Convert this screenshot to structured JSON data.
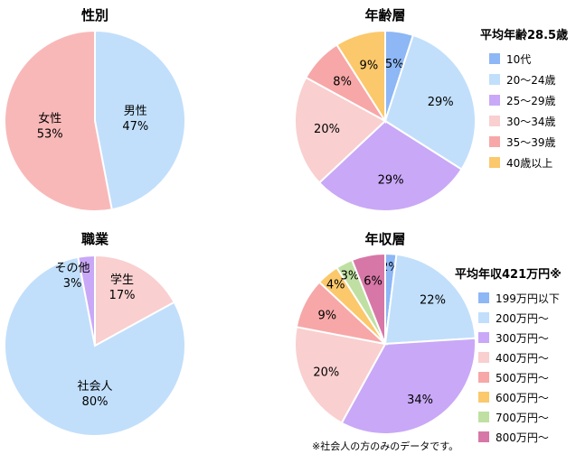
{
  "chart_data": [
    {
      "type": "pie",
      "title": "性別",
      "slices": [
        {
          "label": "男性",
          "value": 47,
          "color": "#c1dffb"
        },
        {
          "label": "女性",
          "value": 53,
          "color": "#f9b8b8"
        }
      ]
    },
    {
      "type": "pie",
      "title": "年齢層",
      "legend_title": "平均年齢28.5歳",
      "slices": [
        {
          "label": "10代",
          "value": 5,
          "color": "#8db7f5"
        },
        {
          "label": "20〜24歳",
          "value": 29,
          "color": "#c1dffb"
        },
        {
          "label": "25〜29歳",
          "value": 29,
          "color": "#c9a8f7"
        },
        {
          "label": "30〜34歳",
          "value": 20,
          "color": "#f9cfcf"
        },
        {
          "label": "35〜39歳",
          "value": 8,
          "color": "#f7a7a7"
        },
        {
          "label": "40歳以上",
          "value": 9,
          "color": "#fbc86b"
        }
      ]
    },
    {
      "type": "pie",
      "title": "職業",
      "slices": [
        {
          "label": "学生",
          "value": 17,
          "color": "#f9cfcf"
        },
        {
          "label": "社会人",
          "value": 80,
          "color": "#c1dffb"
        },
        {
          "label": "その他",
          "value": 3,
          "color": "#c9a8f7"
        }
      ]
    },
    {
      "type": "pie",
      "title": "年収層",
      "legend_title": "平均年収421万円※",
      "note": "※社会人の方のみのデータです。",
      "slices": [
        {
          "label": "199万円以下",
          "value": 2,
          "color": "#8db7f5"
        },
        {
          "label": "200万円〜",
          "value": 22,
          "color": "#c1dffb"
        },
        {
          "label": "300万円〜",
          "value": 34,
          "color": "#c9a8f7"
        },
        {
          "label": "400万円〜",
          "value": 20,
          "color": "#f9cfcf"
        },
        {
          "label": "500万円〜",
          "value": 9,
          "color": "#f7a7a7"
        },
        {
          "label": "600万円〜",
          "value": 4,
          "color": "#fbc86b"
        },
        {
          "label": "700万円〜",
          "value": 3,
          "color": "#bfe0a2"
        },
        {
          "label": "800万円〜",
          "value": 6,
          "color": "#d777a7"
        }
      ]
    }
  ]
}
